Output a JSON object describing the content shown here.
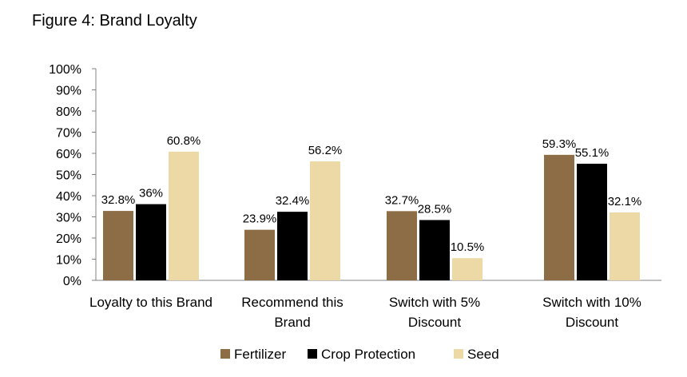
{
  "figure_title": "Figure 4: Brand Loyalty",
  "chart_data": {
    "type": "bar",
    "title": "",
    "xlabel": "",
    "ylabel": "",
    "ylim": [
      0,
      100
    ],
    "y_ticks": [
      "0%",
      "10%",
      "20%",
      "30%",
      "40%",
      "50%",
      "60%",
      "70%",
      "80%",
      "90%",
      "100%"
    ],
    "y_tick_values": [
      0,
      10,
      20,
      30,
      40,
      50,
      60,
      70,
      80,
      90,
      100
    ],
    "grid": false,
    "legend_position": "bottom",
    "categories": [
      [
        "Loyalty to this Brand"
      ],
      [
        "Recommend this",
        "Brand"
      ],
      [
        "Switch with 5%",
        "Discount"
      ],
      [
        "Switch with 10%",
        "Discount"
      ]
    ],
    "series": [
      {
        "name": "Fertilizer",
        "color": "#8c6d45",
        "values": [
          32.8,
          23.9,
          32.7,
          59.3
        ],
        "labels": [
          "32.8%",
          "23.9%",
          "32.7%",
          "59.3%"
        ]
      },
      {
        "name": "Crop Protection",
        "color": "#000000",
        "values": [
          36,
          32.4,
          28.5,
          55.1
        ],
        "labels": [
          "36%",
          "32.4%",
          "28.5%",
          "55.1%"
        ]
      },
      {
        "name": "Seed",
        "color": "#ecd9a6",
        "values": [
          60.8,
          56.2,
          10.5,
          32.1
        ],
        "labels": [
          "60.8%",
          "56.2%",
          "10.5%",
          "32.1%"
        ]
      }
    ]
  }
}
